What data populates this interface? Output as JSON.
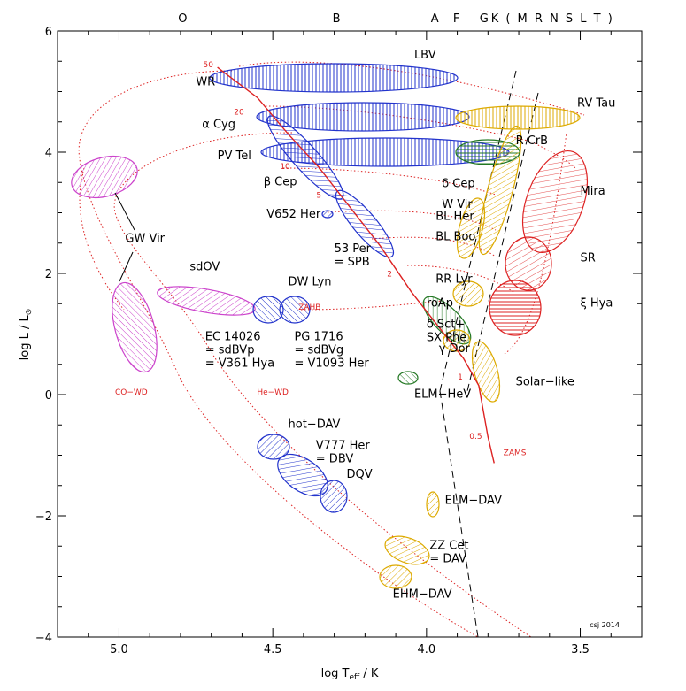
{
  "chart_data": {
    "type": "scatter",
    "title": "",
    "xlabel_pre": "log T",
    "xlabel_sub": "eff",
    "xlabel_post": " / K",
    "ylabel_pre": "log L / L",
    "ylabel_sym": "⊙",
    "x_ticks": [
      "5.0",
      "4.5",
      "4.0",
      "3.5"
    ],
    "y_ticks": [
      "−4",
      "−2",
      "0",
      "2",
      "4",
      "6"
    ],
    "xlim": [
      5.2,
      3.3
    ],
    "ylim": [
      -4,
      6
    ],
    "spectral_classes": [
      {
        "label": "O",
        "logT": 4.79
      },
      {
        "label": "B",
        "logT": 4.29
      },
      {
        "label": "A",
        "logT": 3.97
      },
      {
        "label": "F",
        "logT": 3.9
      },
      {
        "label": "G",
        "logT": 3.81
      },
      {
        "label": "K ( M R N S L T )",
        "logT": 3.59
      }
    ],
    "zams": {
      "label": "ZAMS",
      "points": [
        [
          4.68,
          5.4
        ],
        [
          4.55,
          4.9
        ],
        [
          4.45,
          4.3
        ],
        [
          4.35,
          3.75
        ],
        [
          4.25,
          3.1
        ],
        [
          4.15,
          2.45
        ],
        [
          4.05,
          1.7
        ],
        [
          3.95,
          1.05
        ],
        [
          3.88,
          0.6
        ],
        [
          3.83,
          0.15
        ],
        [
          3.8,
          -0.7
        ],
        [
          3.78,
          -1.13
        ]
      ],
      "mass_labels": [
        {
          "text": "50",
          "logT": 4.71,
          "logL": 5.4
        },
        {
          "text": "20",
          "logT": 4.61,
          "logL": 4.62
        },
        {
          "text": "10",
          "logT": 4.46,
          "logL": 3.72
        },
        {
          "text": "5",
          "logT": 4.35,
          "logL": 3.25
        },
        {
          "text": "2",
          "logT": 4.12,
          "logL": 1.95
        },
        {
          "text": "1",
          "logT": 3.89,
          "logL": 0.25
        },
        {
          "text": "0.5",
          "logT": 3.84,
          "logL": -0.73
        }
      ]
    },
    "region_labels": [
      {
        "text": "ZAHB",
        "logT": 4.38,
        "logL": 1.4
      },
      {
        "text": "CO−WD",
        "logT": 4.96,
        "logL": 0.0
      },
      {
        "text": "He−WD",
        "logT": 4.5,
        "logL": 0.0
      }
    ],
    "classes": [
      {
        "name": "LBV",
        "color": "#2233cc",
        "cx": 4.41,
        "cy": 5.25,
        "label_logT": 4.04,
        "label_logL": 5.55
      },
      {
        "name": "WR",
        "color": "#2233cc",
        "cx": 4.41,
        "cy": 5.25,
        "label_logT": 4.75,
        "label_logL": 5.1
      },
      {
        "name": "α Cyg",
        "color": "#2233cc",
        "cx": 4.36,
        "cy": 4.55,
        "label_logT": 4.73,
        "label_logL": 4.4
      },
      {
        "name": "PV Tel",
        "color": "#2233cc",
        "cx": 4.2,
        "cy": 4.0,
        "label_logT": 4.68,
        "label_logL": 3.88
      },
      {
        "name": "β Cep",
        "color": "#2233cc",
        "cx": 4.37,
        "cy": 3.8,
        "label_logT": 4.53,
        "label_logL": 3.45
      },
      {
        "name": "V652 Her",
        "color": "#2233cc",
        "cx": 4.31,
        "cy": 3.0,
        "label_logT": 4.52,
        "label_logL": 2.92
      },
      {
        "name": "53 Per\n= SPB",
        "color": "#2233cc",
        "cx": 4.18,
        "cy": 2.8,
        "label_logT": 4.3,
        "label_logL": 2.35
      },
      {
        "name": "sdOV",
        "color": "#cc44cc",
        "cx": 4.8,
        "cy": 1.6,
        "label_logT": 4.77,
        "label_logL": 2.05
      },
      {
        "name": "DW Lyn",
        "color": "#2233cc",
        "cx": 4.46,
        "cy": 1.42,
        "label_logT": 4.45,
        "label_logL": 1.8
      },
      {
        "name": "EC 14026\n= sdBVp\n= V361 Hya",
        "color": "#2233cc",
        "cx": 4.48,
        "cy": 1.42,
        "label_logT": 4.72,
        "label_logL": 0.9
      },
      {
        "name": "PG 1716\n= sdBVg\n= V1093 Her",
        "color": "#2233cc",
        "cx": 4.42,
        "cy": 1.42,
        "label_logT": 4.43,
        "label_logL": 0.9
      },
      {
        "name": "GW Vir",
        "color": "#cc44cc",
        "cx": 5.05,
        "cy": 2.5,
        "label_logT": 4.98,
        "label_logL": 2.52
      },
      {
        "name": "LBV",
        "color": "#2233cc",
        "cx": 4.41,
        "cy": 5.25,
        "label_logT": 0,
        "label_logL": 0,
        "hidden": true
      },
      {
        "name": "ELM−HeV",
        "color": "#227722",
        "cx": 4.0,
        "cy": 0.3,
        "label_logT": 4.04,
        "label_logL": -0.05
      },
      {
        "name": "roAp",
        "color": "#227722",
        "cx": 3.92,
        "cy": 1.3,
        "label_logT": 4.0,
        "label_logL": 1.45
      },
      {
        "name": "δ Sct+\nSX Phe",
        "color": "#227722",
        "cx": 3.92,
        "cy": 1.2,
        "label_logT": 4.0,
        "label_logL": 1.1
      },
      {
        "name": "γ Dor",
        "color": "#ddaa00",
        "cx": 3.86,
        "cy": 0.7,
        "label_logT": 3.96,
        "label_logL": 0.7
      },
      {
        "name": "RR Lyr",
        "color": "#ddaa00",
        "cx": 3.85,
        "cy": 1.7,
        "label_logT": 3.97,
        "label_logL": 1.85
      },
      {
        "name": "BL Boo",
        "color": "#ddaa00",
        "cx": 3.82,
        "cy": 2.8,
        "label_logT": 3.97,
        "label_logL": 2.55
      },
      {
        "name": "BL Her",
        "color": "#ddaa00",
        "cx": 3.82,
        "cy": 3.0,
        "label_logT": 3.97,
        "label_logL": 2.88
      },
      {
        "name": "W Vir",
        "color": "#ddaa00",
        "cx": 3.82,
        "cy": 3.2,
        "label_logT": 3.95,
        "label_logL": 3.08
      },
      {
        "name": "δ Cep",
        "color": "#ddaa00",
        "cx": 3.82,
        "cy": 3.5,
        "label_logT": 3.95,
        "label_logL": 3.42
      },
      {
        "name": "R CrB",
        "color": "#227722",
        "cx": 3.8,
        "cy": 4.0,
        "label_logT": 3.71,
        "label_logL": 4.13
      },
      {
        "name": "RV Tau",
        "color": "#ddaa00",
        "cx": 3.6,
        "cy": 4.55,
        "label_logT": 3.51,
        "label_logL": 4.75
      },
      {
        "name": "Mira",
        "color": "#dd2222",
        "cx": 3.6,
        "cy": 3.4,
        "label_logT": 3.5,
        "label_logL": 3.3
      },
      {
        "name": "SR",
        "color": "#dd2222",
        "cx": 3.63,
        "cy": 2.1,
        "label_logT": 3.5,
        "label_logL": 2.2
      },
      {
        "name": "ξ Hya",
        "color": "#dd2222",
        "cx": 3.68,
        "cy": 1.45,
        "label_logT": 3.5,
        "label_logL": 1.45
      },
      {
        "name": "Solar−like",
        "color": "#ddaa00",
        "cx": 3.8,
        "cy": 0.3,
        "label_logT": 3.71,
        "label_logL": 0.15
      },
      {
        "name": "hot−DAV",
        "color": "#2233cc",
        "cx": 4.5,
        "cy": -0.95,
        "label_logT": 4.45,
        "label_logL": -0.55
      },
      {
        "name": "V777 Her\n= DBV",
        "color": "#2233cc",
        "cx": 4.4,
        "cy": -1.3,
        "label_logT": 4.36,
        "label_logL": -0.9
      },
      {
        "name": "DQV",
        "color": "#2233cc",
        "cx": 4.32,
        "cy": -1.65,
        "label_logT": 4.26,
        "label_logL": -1.37
      },
      {
        "name": "ELM−DAV",
        "color": "#ddaa00",
        "cx": 3.98,
        "cy": -1.8,
        "label_logT": 3.94,
        "label_logL": -1.8
      },
      {
        "name": "ZZ Cet\n= DAV",
        "color": "#ddaa00",
        "cx": 4.07,
        "cy": -2.6,
        "label_logT": 3.99,
        "label_logL": -2.55
      },
      {
        "name": "EHM−DAV",
        "color": "#ddaa00",
        "cx": 4.1,
        "cy": -3.0,
        "label_logT": 4.11,
        "label_logL": -3.35
      }
    ],
    "credit": "csj 2014"
  }
}
